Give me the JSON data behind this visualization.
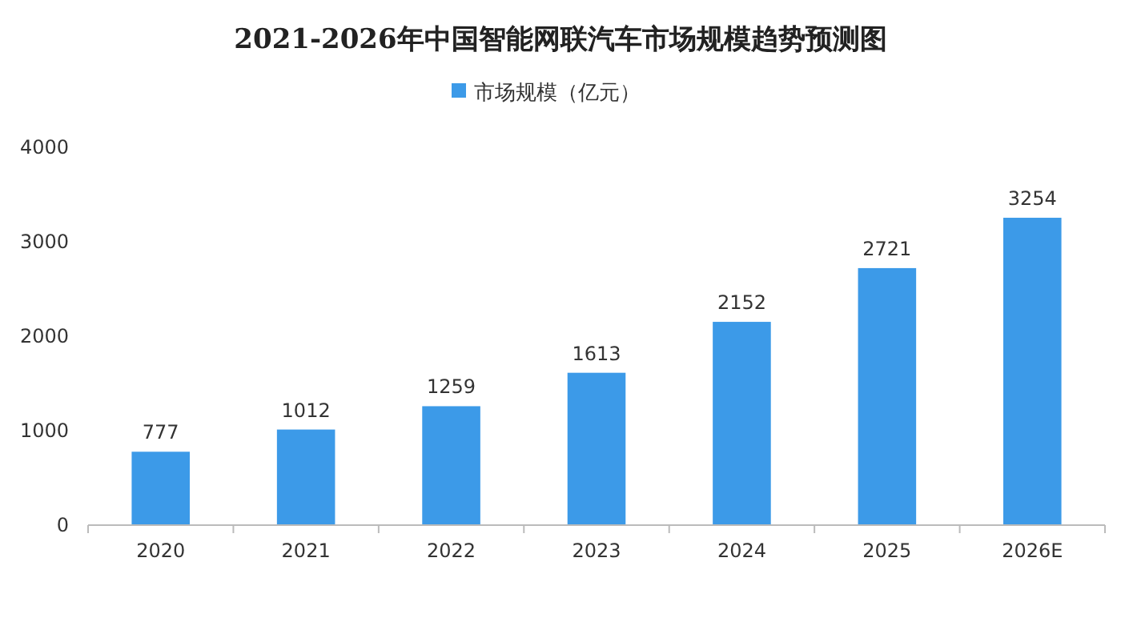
{
  "chart_data": {
    "type": "bar",
    "title": "2021-2026年中国智能网联汽车市场规模趋势预测图",
    "categories": [
      "2020",
      "2021",
      "2022",
      "2023",
      "2024",
      "2025",
      "2026E"
    ],
    "series": [
      {
        "name": "市场规模（亿元）",
        "color": "#3c9ae8",
        "values": [
          777,
          1012,
          1259,
          1613,
          2152,
          2721,
          3254
        ]
      }
    ],
    "ylim": [
      0,
      4000
    ],
    "yticks": [
      0,
      1000,
      2000,
      3000,
      4000
    ],
    "data_labels": true,
    "legend": "top"
  }
}
